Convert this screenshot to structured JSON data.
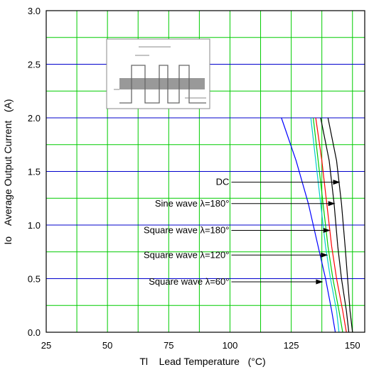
{
  "chart_data": {
    "type": "line",
    "xlabel": "Tl    Lead Temperature   (°C)",
    "ylabel": "Io    Average Output Current   (A)",
    "xlim": [
      25,
      155
    ],
    "ylim": [
      0,
      3.0
    ],
    "x_ticks": [
      "25",
      "50",
      "75",
      "100",
      "125",
      "150"
    ],
    "y_ticks": [
      "0.0",
      "0.5",
      "1.0",
      "1.5",
      "2.0",
      "2.5",
      "3.0"
    ],
    "grid": true,
    "grid_colors": {
      "major_horizontal": "#0000cc",
      "minor": "#00cc00",
      "major_vertical": "#00cc00"
    },
    "series": [
      {
        "color": "#0000ff",
        "points": [
          [
            121,
            2.0
          ],
          [
            127,
            1.6
          ],
          [
            132,
            1.2
          ],
          [
            136,
            0.8
          ],
          [
            139,
            0.5
          ],
          [
            141.5,
            0.2
          ],
          [
            143,
            0.0
          ]
        ]
      },
      {
        "color": "#00cccc",
        "points": [
          [
            133,
            2.0
          ],
          [
            135,
            1.6
          ],
          [
            137,
            1.2
          ],
          [
            139,
            0.8
          ],
          [
            141,
            0.5
          ],
          [
            143.5,
            0.2
          ],
          [
            144.5,
            0.0
          ]
        ]
      },
      {
        "color": "#00cc00",
        "points": [
          [
            134,
            2.0
          ],
          [
            136,
            1.6
          ],
          [
            138,
            1.2
          ],
          [
            140,
            0.8
          ],
          [
            142,
            0.5
          ],
          [
            144.5,
            0.2
          ],
          [
            146,
            0.0
          ]
        ]
      },
      {
        "color": "#ff0000",
        "points": [
          [
            135,
            2.0
          ],
          [
            137.5,
            1.6
          ],
          [
            139.5,
            1.2
          ],
          [
            141.5,
            0.8
          ],
          [
            143.5,
            0.5
          ],
          [
            146,
            0.2
          ],
          [
            147.5,
            0.0
          ]
        ]
      },
      {
        "color": "#000000",
        "points": [
          [
            137,
            2.0
          ],
          [
            140.5,
            1.6
          ],
          [
            142.5,
            1.2
          ],
          [
            144,
            0.8
          ],
          [
            145.5,
            0.5
          ],
          [
            147.5,
            0.2
          ],
          [
            148.5,
            0.0
          ]
        ]
      },
      {
        "color": "#000000",
        "points": [
          [
            140,
            2.0
          ],
          [
            143.5,
            1.6
          ],
          [
            145.5,
            1.2
          ],
          [
            147,
            0.8
          ],
          [
            148,
            0.5
          ],
          [
            149,
            0.2
          ],
          [
            150,
            0.0
          ]
        ]
      }
    ],
    "annotations": [
      {
        "text": "DC",
        "x_text_end": 100,
        "y": 1.4,
        "arrow_to": [
          145,
          1.4
        ]
      },
      {
        "text": "Sine wave λ=180°",
        "x_text_end": 100,
        "y": 1.2,
        "arrow_to": [
          143,
          1.2
        ]
      },
      {
        "text": "Square wave λ=180°",
        "x_text_end": 100,
        "y": 0.95,
        "arrow_to": [
          141,
          0.95
        ]
      },
      {
        "text": "Square wave λ=120°",
        "x_text_end": 100,
        "y": 0.72,
        "arrow_to": [
          140,
          0.72
        ]
      },
      {
        "text": "Square wave λ=60°",
        "x_text_end": 100,
        "y": 0.47,
        "arrow_to": [
          138,
          0.47
        ]
      }
    ]
  }
}
